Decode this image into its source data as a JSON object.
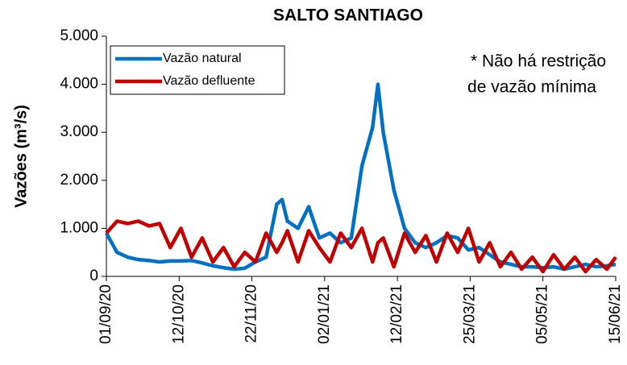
{
  "chart_data": {
    "type": "line",
    "title": "SALTO SANTIAGO",
    "y_label": "Vazões (m³/s)",
    "annotation": [
      "* Não há restrição",
      "de vazão mínima"
    ],
    "x": [
      "01/09/20",
      "07/09/20",
      "13/09/20",
      "19/09/20",
      "25/09/20",
      "01/10/20",
      "07/10/20",
      "13/10/20",
      "19/10/20",
      "25/10/20",
      "31/10/20",
      "06/11/20",
      "12/11/20",
      "18/11/20",
      "24/11/20",
      "30/11/20",
      "06/12/20",
      "09/12/20",
      "12/12/20",
      "18/12/20",
      "24/12/20",
      "30/12/20",
      "05/01/21",
      "11/01/21",
      "17/01/21",
      "23/01/21",
      "29/01/21",
      "01/02/21",
      "04/02/21",
      "10/02/21",
      "16/02/21",
      "22/02/21",
      "28/02/21",
      "06/03/21",
      "12/03/21",
      "18/03/21",
      "24/03/21",
      "30/03/21",
      "05/04/21",
      "11/04/21",
      "17/04/21",
      "23/04/21",
      "29/04/21",
      "05/05/21",
      "11/05/21",
      "17/05/21",
      "23/05/21",
      "29/05/21",
      "04/06/21",
      "10/06/21",
      "15/06/21"
    ],
    "series": [
      {
        "name": "Vazão natural",
        "color": "#0070c0",
        "values": [
          900,
          500,
          400,
          350,
          330,
          300,
          320,
          320,
          330,
          280,
          220,
          180,
          150,
          170,
          300,
          400,
          1500,
          1600,
          1150,
          1000,
          1450,
          800,
          900,
          700,
          800,
          2300,
          3100,
          4000,
          3000,
          1800,
          1000,
          700,
          600,
          700,
          850,
          800,
          550,
          600,
          450,
          300,
          250,
          200,
          200,
          180,
          200,
          150,
          200,
          250,
          200,
          220,
          250
        ]
      },
      {
        "name": "Vazão defluente",
        "color": "#c00000",
        "values": [
          900,
          1150,
          1100,
          1150,
          1050,
          1100,
          600,
          1000,
          400,
          800,
          300,
          600,
          200,
          500,
          300,
          900,
          500,
          700,
          950,
          300,
          950,
          600,
          300,
          900,
          600,
          1000,
          300,
          700,
          800,
          200,
          900,
          500,
          850,
          300,
          900,
          500,
          1000,
          300,
          700,
          200,
          500,
          150,
          400,
          100,
          450,
          150,
          400,
          100,
          350,
          150,
          400
        ]
      }
    ],
    "xlim": [
      "01/09/20",
      "15/06/21"
    ],
    "xticks": [
      "01/09/20",
      "12/10/20",
      "22/11/20",
      "02/01/21",
      "12/02/21",
      "25/03/21",
      "05/05/21",
      "15/06/21"
    ],
    "ylim": [
      0,
      5000
    ],
    "yticks": [
      0,
      {
        "value": 1000,
        "label": "1.000"
      },
      {
        "value": 2000,
        "label": "2.000"
      },
      {
        "value": 3000,
        "label": "3.000"
      },
      {
        "value": 4000,
        "label": "4.000"
      },
      {
        "value": 5000,
        "label": "5.000"
      }
    ],
    "legend": "upper left"
  }
}
